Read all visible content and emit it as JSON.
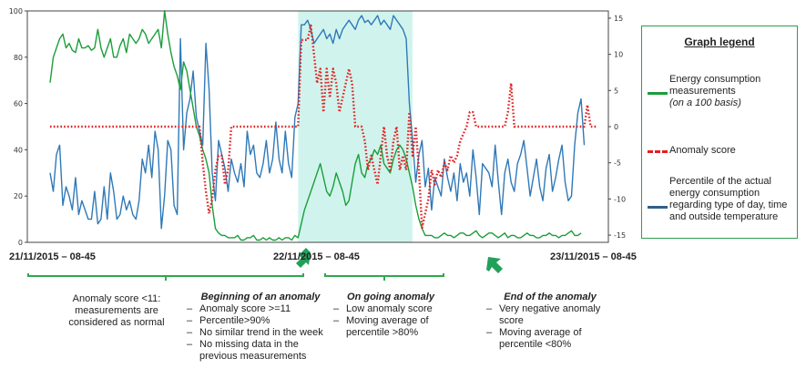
{
  "chart_data": {
    "type": "line",
    "x_tick_labels": [
      "21/11/2015 – 08-45",
      "22/11/2015 – 08-45",
      "23/11/2015 – 08-45"
    ],
    "y_left_ticks": [
      0,
      20,
      40,
      60,
      80,
      100
    ],
    "y_right_ticks": [
      -15,
      -10,
      -5,
      0,
      5,
      10,
      15
    ],
    "ylim_left": [
      0,
      100
    ],
    "ylim_right": [
      -16,
      16
    ],
    "grid": false,
    "legend_position": "right",
    "highlight_region": {
      "from_index": 78,
      "to_index": 114,
      "color": "#c8f2ea"
    },
    "series": [
      {
        "key": "energy",
        "axis": "left",
        "color": "#1a9e3a",
        "style": "solid",
        "values": [
          69,
          80,
          84,
          88,
          90,
          84,
          86,
          83,
          82,
          88,
          84,
          84,
          85,
          83,
          84,
          92,
          84,
          80,
          84,
          88,
          80,
          80,
          85,
          88,
          82,
          90,
          88,
          86,
          88,
          92,
          90,
          86,
          88,
          90,
          92,
          84,
          100,
          90,
          82,
          76,
          72,
          66,
          78,
          74,
          66,
          58,
          50,
          46,
          40,
          36,
          30,
          16,
          6,
          4,
          3,
          3,
          2,
          2,
          2,
          3,
          1,
          1,
          2,
          2,
          3,
          1,
          1,
          2,
          1,
          2,
          1,
          1,
          2,
          1,
          2,
          2,
          1,
          3,
          2,
          8,
          14,
          18,
          22,
          26,
          30,
          34,
          28,
          22,
          20,
          24,
          30,
          26,
          22,
          16,
          18,
          26,
          34,
          38,
          30,
          28,
          34,
          36,
          40,
          38,
          42,
          34,
          32,
          30,
          36,
          40,
          42,
          40,
          36,
          30,
          24,
          16,
          10,
          6,
          3,
          3,
          3,
          2,
          2,
          3,
          4,
          3,
          3,
          2,
          3,
          4,
          4,
          3,
          3,
          4,
          5,
          3,
          2,
          3,
          4,
          4,
          3,
          2,
          3,
          4,
          2,
          3,
          3,
          2,
          2,
          3,
          4,
          3,
          3,
          2,
          2,
          3,
          3,
          4,
          3,
          3,
          2,
          3,
          3,
          4,
          5,
          3,
          3,
          4
        ]
      },
      {
        "key": "anomaly",
        "axis": "right",
        "color": "#e02020",
        "style": "dotted",
        "values": [
          0,
          0,
          0,
          0,
          0,
          0,
          0,
          0,
          0,
          0,
          0,
          0,
          0,
          0,
          0,
          0,
          0,
          0,
          0,
          0,
          0,
          0,
          0,
          0,
          0,
          0,
          0,
          0,
          0,
          0,
          0,
          0,
          0,
          0,
          0,
          0,
          0,
          0,
          0,
          0,
          0,
          0,
          0,
          0,
          0,
          0,
          0,
          0,
          -5,
          -9,
          -12,
          -10,
          -6,
          -4,
          -4,
          -8,
          -6,
          0,
          0,
          0,
          0,
          0,
          0,
          0,
          0,
          0,
          0,
          0,
          0,
          0,
          0,
          0,
          0,
          0,
          0,
          0,
          0,
          0,
          0,
          12,
          12,
          12,
          14,
          10,
          6,
          8,
          2,
          8,
          4,
          8,
          6,
          2,
          4,
          6,
          8,
          6,
          0,
          0,
          0,
          -2,
          -6,
          -4,
          -6,
          -8,
          -4,
          0,
          -4,
          -6,
          -2,
          0,
          -6,
          -4,
          -6,
          2,
          -4,
          0,
          -6,
          -14,
          -12,
          -10,
          -6,
          -8,
          -6,
          -7,
          -5,
          -6,
          -4,
          -5,
          -4,
          -2,
          -1,
          0,
          2,
          2,
          0,
          0,
          0,
          0,
          0,
          0,
          0,
          0,
          0,
          0,
          2,
          6,
          0,
          0,
          0,
          0,
          0,
          0,
          0,
          0,
          0,
          0,
          0,
          0,
          0,
          0,
          0,
          0,
          0,
          0,
          0,
          0,
          0,
          0,
          0,
          3,
          0,
          0,
          0
        ]
      },
      {
        "key": "percentile",
        "axis": "left",
        "color": "#2f79b8",
        "style": "solid",
        "values": [
          30,
          22,
          38,
          42,
          16,
          24,
          20,
          14,
          28,
          12,
          18,
          14,
          10,
          10,
          22,
          8,
          10,
          24,
          10,
          30,
          22,
          10,
          12,
          20,
          14,
          18,
          12,
          10,
          18,
          36,
          30,
          42,
          28,
          48,
          40,
          6,
          20,
          44,
          40,
          16,
          12,
          88,
          40,
          56,
          62,
          74,
          54,
          48,
          42,
          86,
          66,
          30,
          18,
          44,
          38,
          32,
          22,
          36,
          30,
          26,
          34,
          24,
          48,
          38,
          42,
          30,
          28,
          34,
          44,
          30,
          36,
          52,
          36,
          30,
          48,
          34,
          28,
          54,
          60,
          94,
          94,
          96,
          92,
          86,
          88,
          90,
          92,
          88,
          90,
          86,
          92,
          88,
          92,
          94,
          96,
          94,
          92,
          96,
          98,
          95,
          96,
          94,
          96,
          98,
          94,
          96,
          94,
          92,
          98,
          96,
          94,
          92,
          88,
          60,
          44,
          26,
          38,
          44,
          24,
          32,
          14,
          28,
          24,
          20,
          36,
          28,
          22,
          30,
          18,
          34,
          26,
          30,
          20,
          40,
          28,
          12,
          34,
          32,
          30,
          24,
          42,
          26,
          12,
          30,
          36,
          26,
          22,
          34,
          38,
          44,
          32,
          20,
          28,
          36,
          24,
          18,
          32,
          38,
          22,
          28,
          36,
          42,
          26,
          18,
          20,
          42,
          56,
          62,
          42
        ]
      }
    ]
  },
  "legend": {
    "title": "Graph legend",
    "items": [
      {
        "key": "energy",
        "label": "Energy consumption measurements",
        "sublabel": "(on a 100 basis)",
        "color": "#1a9e3a"
      },
      {
        "key": "anomaly",
        "label": "Anomaly score",
        "color": "#e02020"
      },
      {
        "key": "percentile",
        "label": "Percentile of the actual energy consumption regarding type of day, time and outside temperature",
        "color": "#2f5f8a"
      }
    ]
  },
  "annotations": {
    "normal": {
      "text": "Anomaly score <11: measurements are considered as normal"
    },
    "beginning": {
      "title": "Beginning of an anomaly",
      "bullets": [
        "Anomaly score >=11",
        "Percentile>90%",
        "No similar trend in the week",
        "No missing data in the previous measurements"
      ]
    },
    "ongoing": {
      "title": "On going anomaly",
      "bullets": [
        "Low anomaly score",
        "Moving average of percentile >80%"
      ]
    },
    "end": {
      "title": "End of the anomaly",
      "bullets": [
        "Very negative anomaly score",
        "Moving average of percentile <80%"
      ]
    }
  },
  "colors": {
    "bracket": "#2ea84f",
    "arrow": "#22a05a",
    "legend_border": "#2e9e4f"
  }
}
